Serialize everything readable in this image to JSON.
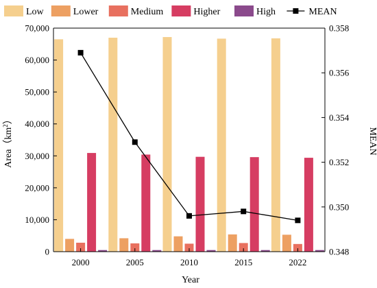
{
  "chart_data": {
    "type": "bar",
    "categories": [
      "2000",
      "2005",
      "2010",
      "2015",
      "2022"
    ],
    "xlabel": "Year",
    "ylabel": "Area（km²）",
    "ylabel_main": "Area（km",
    "ylabel_sup": "2",
    "ylabel_close": "）",
    "y2label": "MEAN",
    "ylim": [
      0,
      70000
    ],
    "y2lim": [
      0.348,
      0.358
    ],
    "yticks": [
      "0",
      "10,000",
      "20,000",
      "30,000",
      "40,000",
      "50,000",
      "60,000",
      "70,000"
    ],
    "y2ticks": [
      "0.348",
      "0.350",
      "0.352",
      "0.354",
      "0.356",
      "0.358"
    ],
    "legend_position": "top",
    "series": [
      {
        "name": "Low",
        "color": "#f5cf8e",
        "values": [
          66500,
          67000,
          67200,
          66700,
          66800
        ]
      },
      {
        "name": "Lower",
        "color": "#eda062",
        "values": [
          4000,
          4200,
          4800,
          5400,
          5300
        ]
      },
      {
        "name": "Medium",
        "color": "#e8705f",
        "values": [
          2800,
          2600,
          2500,
          2700,
          2400
        ]
      },
      {
        "name": "Higher",
        "color": "#d63d62",
        "values": [
          30900,
          30400,
          29700,
          29600,
          29400
        ]
      },
      {
        "name": "High",
        "color": "#8b4a8c",
        "values": [
          500,
          500,
          500,
          500,
          500
        ]
      }
    ],
    "line_series": {
      "name": "MEAN",
      "color": "#000000",
      "values": [
        0.3569,
        0.3529,
        0.3496,
        0.3498,
        0.3494
      ]
    }
  }
}
